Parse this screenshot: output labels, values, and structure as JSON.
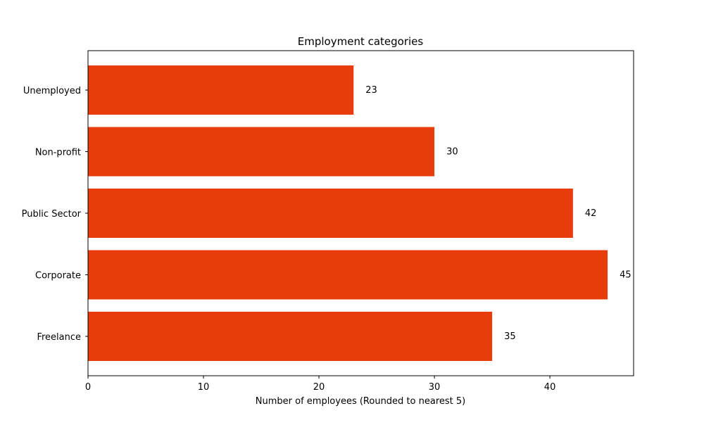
{
  "chart_data": {
    "type": "bar",
    "orientation": "horizontal",
    "title": "Employment categories",
    "xlabel": "Number of employees (Rounded to nearest 5)",
    "ylabel": "",
    "categories": [
      "Unemployed",
      "Non-profit",
      "Public Sector",
      "Corporate",
      "Freelance"
    ],
    "values": [
      23,
      30,
      42,
      45,
      35
    ],
    "xlim": [
      0,
      47.25
    ],
    "xticks": [
      0,
      10,
      20,
      30,
      40
    ],
    "xtick_labels": [
      "0",
      "10",
      "20",
      "30",
      "40"
    ],
    "bar_color": "#e93c0d",
    "grid": false,
    "legend": "none",
    "data_labels": [
      "23",
      "30",
      "42",
      "45",
      "35"
    ]
  }
}
